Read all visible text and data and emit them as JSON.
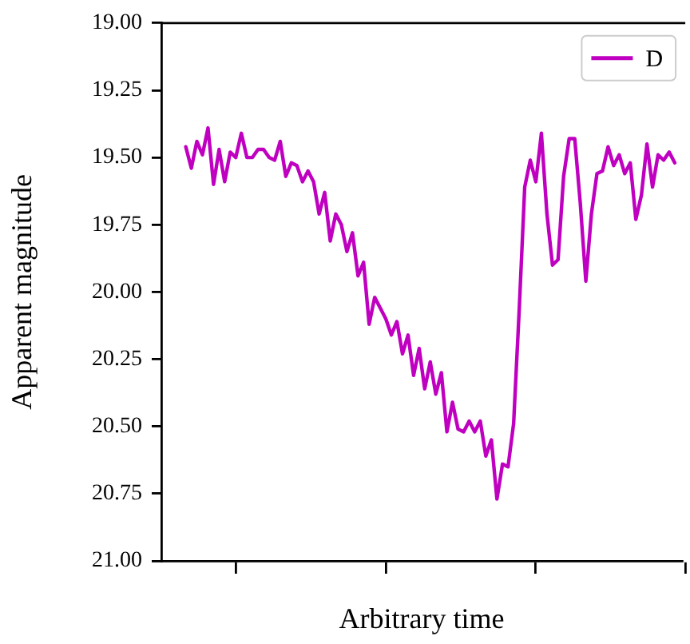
{
  "chart_data": {
    "type": "line",
    "xlabel": "Arbitrary time",
    "ylabel": "Apparent magnitude",
    "categories": [
      null,
      null,
      null,
      null,
      null,
      null,
      null,
      null,
      null,
      null,
      null,
      null,
      null,
      null,
      null,
      null,
      null,
      null,
      null,
      null,
      null,
      null,
      null,
      null,
      null,
      null,
      null,
      null,
      null,
      null,
      null,
      null,
      null,
      null,
      null,
      null,
      null,
      null,
      null,
      null,
      null,
      null,
      null,
      null,
      null,
      null,
      null,
      null,
      null,
      null,
      null,
      null,
      null,
      null,
      null,
      null,
      null,
      null,
      null,
      null,
      null,
      null,
      null,
      null,
      null,
      null,
      null,
      null,
      null,
      null,
      null,
      null,
      null,
      null,
      null,
      null,
      null,
      null,
      null,
      null,
      null,
      null,
      null,
      null,
      null,
      null,
      null,
      null,
      null
    ],
    "ylim": [
      21.0,
      19.0
    ],
    "yticks": [
      {
        "value": 19,
        "label": "19.00"
      },
      {
        "value": 19.25,
        "label": "19.25"
      },
      {
        "value": 19.5,
        "label": "19.50"
      },
      {
        "value": 19.75,
        "label": "19.75"
      },
      {
        "value": 20,
        "label": "20.00"
      },
      {
        "value": 20.25,
        "label": "20.25"
      },
      {
        "value": 20.5,
        "label": "20.50"
      },
      {
        "value": 20.75,
        "label": "20.75"
      },
      {
        "value": 21,
        "label": "21.00"
      }
    ],
    "tick_labels": "y",
    "grid": false,
    "legend": "top right",
    "marker": "none",
    "line_style": "solid",
    "series": [
      {
        "name": "D",
        "color": "#c000c0",
        "values": [
          19.46,
          19.54,
          19.44,
          19.49,
          19.39,
          19.6,
          19.47,
          19.59,
          19.48,
          19.5,
          19.41,
          19.5,
          19.5,
          19.47,
          19.47,
          19.5,
          19.51,
          19.44,
          19.57,
          19.52,
          19.53,
          19.59,
          19.55,
          19.59,
          19.71,
          19.63,
          19.81,
          19.71,
          19.75,
          19.85,
          19.78,
          19.94,
          19.89,
          20.12,
          20.02,
          20.06,
          20.1,
          20.16,
          20.11,
          20.23,
          20.16,
          20.31,
          20.21,
          20.36,
          20.26,
          20.38,
          20.3,
          20.52,
          20.41,
          20.51,
          20.52,
          20.48,
          20.52,
          20.48,
          20.61,
          20.55,
          20.77,
          20.64,
          20.65,
          20.49,
          20.07,
          19.61,
          19.51,
          19.59,
          19.41,
          19.71,
          19.9,
          19.88,
          19.57,
          19.43,
          19.43,
          19.67,
          19.96,
          19.71,
          19.56,
          19.55,
          19.46,
          19.53,
          19.49,
          19.56,
          19.52,
          19.73,
          19.64,
          19.45,
          19.61,
          19.49,
          19.51,
          19.48,
          19.52
        ]
      }
    ]
  }
}
